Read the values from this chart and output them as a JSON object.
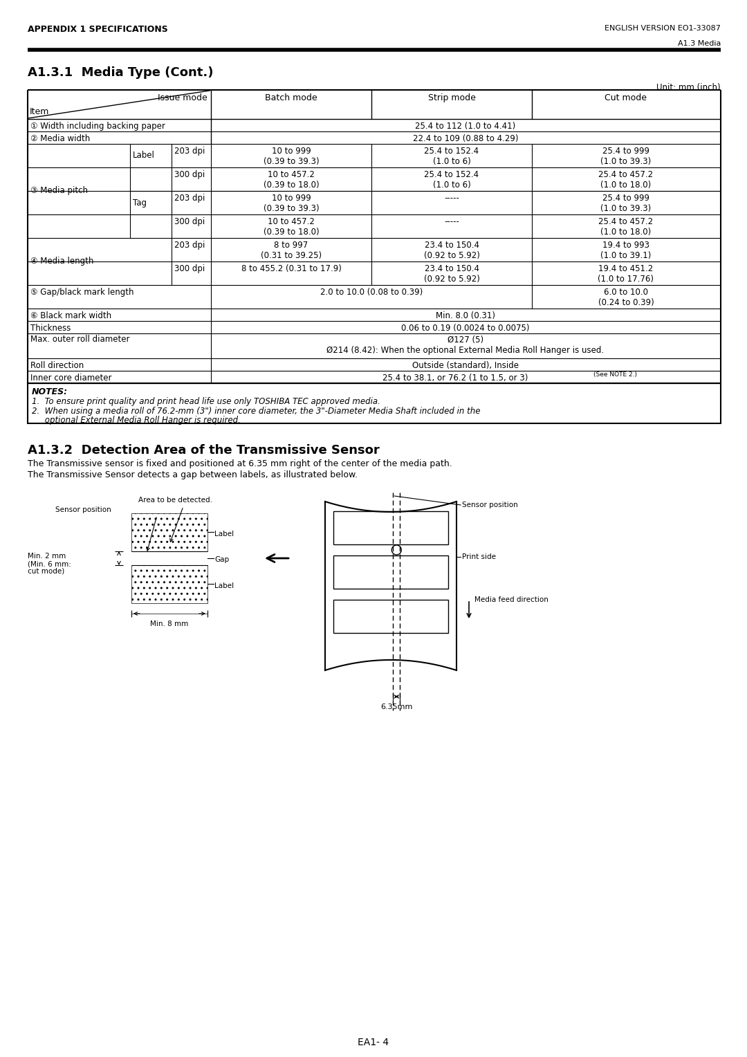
{
  "header_left": "APPENDIX 1 SPECIFICATIONS",
  "header_right": "ENGLISH VERSION EO1-33087",
  "header_sub_right": "A1.3 Media",
  "section_title": "A1.3.1  Media Type (Cont.)",
  "unit_label": "Unit: mm (inch)",
  "notes_title": "NOTES:",
  "note1": "1.  To ensure print quality and print head life use only TOSHIBA TEC approved media.",
  "note2a": "2.  When using a media roll of 76.2-mm (3\") inner core diameter, the 3\"-Diameter Media Shaft included in the",
  "note2b": "     optional External Media Roll Hanger is required.",
  "section2_title": "A1.3.2  Detection Area of the Transmissive Sensor",
  "section2_text1": "The Transmissive sensor is fixed and positioned at 6.35 mm right of the center of the media path.",
  "section2_text2": "The Transmissive Sensor detects a gap between labels, as illustrated below.",
  "footer": "EA1- 4",
  "bg_color": "#ffffff"
}
